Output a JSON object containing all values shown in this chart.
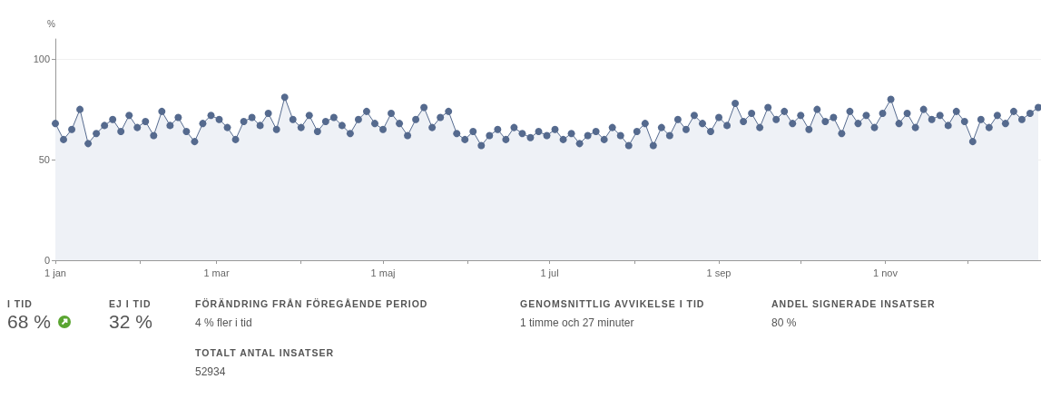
{
  "chart_data": [
    {
      "type": "area",
      "ylabel": "%",
      "xlim": [
        "--01-01",
        "--12-28"
      ],
      "ylim": [
        0,
        110
      ],
      "yticks": [
        0,
        50,
        100
      ],
      "xticks": [
        {
          "value": "--01-01",
          "label": "1 jan"
        },
        {
          "value": "--02-01",
          "label": null
        },
        {
          "value": "--03-01",
          "label": "1 mar"
        },
        {
          "value": "--04-01",
          "label": null
        },
        {
          "value": "--05-01",
          "label": "1 maj"
        },
        {
          "value": "--06-01",
          "label": null
        },
        {
          "value": "--07-01",
          "label": "1 jul"
        },
        {
          "value": "--08-01",
          "label": null
        },
        {
          "value": "--09-01",
          "label": "1 sep"
        },
        {
          "value": "--10-01",
          "label": null
        },
        {
          "value": "--11-01",
          "label": "1 nov"
        },
        {
          "value": "--12-01",
          "label": null
        }
      ],
      "grid": "y",
      "marker": "circle",
      "line_style": "solid",
      "x": [
        "--01-01",
        "--01-04",
        "--01-07",
        "--01-10",
        "--01-13",
        "--01-16",
        "--01-19",
        "--01-22",
        "--01-25",
        "--01-28",
        "--01-31",
        "--02-03",
        "--02-06",
        "--02-09",
        "--02-12",
        "--02-15",
        "--02-18",
        "--02-21",
        "--02-24",
        "--02-27",
        "--03-02",
        "--03-05",
        "--03-08",
        "--03-11",
        "--03-14",
        "--03-17",
        "--03-20",
        "--03-23",
        "--03-26",
        "--03-29",
        "--04-01",
        "--04-04",
        "--04-07",
        "--04-10",
        "--04-13",
        "--04-16",
        "--04-19",
        "--04-22",
        "--04-25",
        "--04-28",
        "--05-01",
        "--05-04",
        "--05-07",
        "--05-10",
        "--05-13",
        "--05-16",
        "--05-19",
        "--05-22",
        "--05-25",
        "--05-28",
        "--05-31",
        "--06-03",
        "--06-06",
        "--06-09",
        "--06-12",
        "--06-15",
        "--06-18",
        "--06-21",
        "--06-24",
        "--06-27",
        "--06-30",
        "--07-03",
        "--07-06",
        "--07-09",
        "--07-12",
        "--07-15",
        "--07-18",
        "--07-21",
        "--07-24",
        "--07-27",
        "--07-30",
        "--08-02",
        "--08-05",
        "--08-08",
        "--08-11",
        "--08-14",
        "--08-17",
        "--08-20",
        "--08-23",
        "--08-26",
        "--08-29",
        "--09-01",
        "--09-04",
        "--09-07",
        "--09-10",
        "--09-13",
        "--09-16",
        "--09-19",
        "--09-22",
        "--09-25",
        "--09-28",
        "--10-01",
        "--10-04",
        "--10-07",
        "--10-10",
        "--10-13",
        "--10-16",
        "--10-19",
        "--10-22",
        "--10-25",
        "--10-28",
        "--10-31",
        "--11-03",
        "--11-06",
        "--11-09",
        "--11-12",
        "--11-15",
        "--11-18",
        "--11-21",
        "--11-24",
        "--11-27",
        "--11-30",
        "--12-03",
        "--12-06",
        "--12-09",
        "--12-12",
        "--12-15",
        "--12-18",
        "--12-21",
        "--12-24",
        "--12-27"
      ],
      "series": [
        {
          "color": "#556a8e",
          "values": [
            68,
            60,
            65,
            75,
            58,
            63,
            67,
            70,
            64,
            72,
            66,
            69,
            62,
            74,
            67,
            71,
            64,
            59,
            68,
            72,
            70,
            66,
            60,
            69,
            71,
            67,
            73,
            65,
            81,
            70,
            66,
            72,
            64,
            69,
            71,
            67,
            63,
            70,
            74,
            68,
            65,
            73,
            68,
            62,
            70,
            76,
            66,
            71,
            74,
            63,
            60,
            64,
            57,
            62,
            65,
            60,
            66,
            63,
            61,
            64,
            62,
            65,
            60,
            63,
            58,
            62,
            64,
            60,
            66,
            62,
            57,
            64,
            68,
            57,
            66,
            62,
            70,
            65,
            72,
            68,
            64,
            71,
            67,
            78,
            69,
            73,
            66,
            76,
            70,
            74,
            68,
            72,
            65,
            75,
            69,
            71,
            63,
            74,
            68,
            72,
            66,
            73,
            80,
            68,
            73,
            66,
            75,
            70,
            72,
            67,
            74,
            69,
            59,
            70,
            66,
            72,
            68,
            74,
            70,
            73,
            76
          ]
        }
      ]
    },
    {
      "type": "other",
      "annotations": [
        "I TID",
        "68 %",
        "EJ I TID",
        "32 %",
        "FÖRÄNDRING FRÅN FÖREGÅENDE PERIOD",
        "4 % fler i tid",
        "GENOMSNITTLIG AVVIKELSE I TID",
        "1 timme och 27 minuter",
        "ANDEL SIGNERADE INSATSER",
        "80 %",
        "TOTALT ANTAL INSATSER",
        "52934"
      ]
    }
  ]
}
